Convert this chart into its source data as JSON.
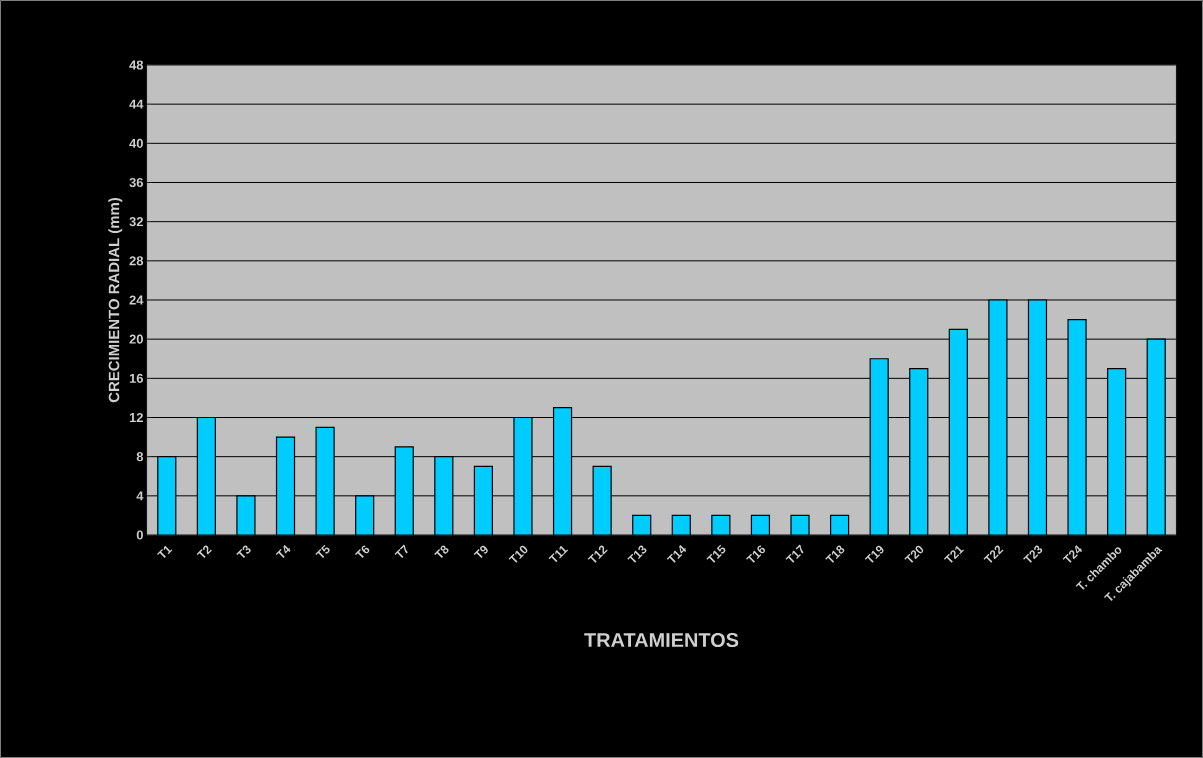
{
  "chart_data": {
    "type": "bar",
    "xlabel": "TRATAMIENTOS",
    "ylabel": "CRECIMIENTO RADIAL (mm)",
    "categories": [
      "T1",
      "T2",
      "T3",
      "T4",
      "T5",
      "T6",
      "T7",
      "T8",
      "T9",
      "T10",
      "T11",
      "T12",
      "T13",
      "T14",
      "T15",
      "T16",
      "T17",
      "T18",
      "T19",
      "T20",
      "T21",
      "T22",
      "T23",
      "T24",
      "T. chambo",
      "T. cajabamba"
    ],
    "values": [
      8,
      12,
      4,
      10,
      11,
      4,
      9,
      8,
      7,
      12,
      13,
      7,
      2,
      2,
      2,
      2,
      2,
      2,
      18,
      17,
      21,
      24,
      24,
      22,
      17,
      20
    ],
    "color": "#00ccff",
    "ylim": [
      0,
      48
    ],
    "yticks": [
      0,
      4,
      8,
      12,
      16,
      20,
      24,
      28,
      32,
      36,
      40,
      44,
      48
    ],
    "grid": "y"
  }
}
